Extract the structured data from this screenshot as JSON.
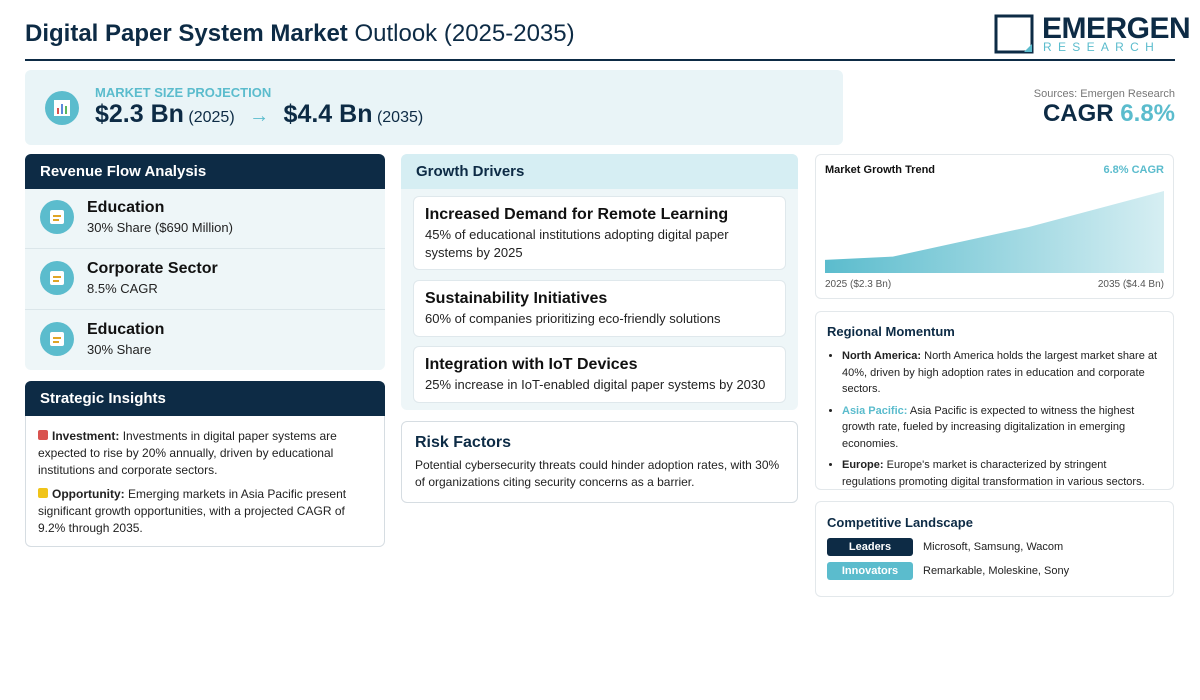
{
  "header": {
    "title_bold": "Digital Paper System Market",
    "title_rest": "Outlook (2025-2035)",
    "logo_main": "EMERGEN",
    "logo_sub": "RESEARCH"
  },
  "projection": {
    "label": "MARKET SIZE PROJECTION",
    "start_value": "$2.3 Bn",
    "start_year": "(2025)",
    "arrow": "→",
    "end_value": "$4.4 Bn",
    "end_year": "(2035)"
  },
  "sources": "Sources: Emergen Research",
  "cagr": {
    "label": "CAGR",
    "value": "6.8%"
  },
  "revenue_flow": {
    "title": "Revenue Flow Analysis",
    "items": [
      {
        "name": "Education",
        "detail": "30% Share ($690 Million)"
      },
      {
        "name": "Corporate Sector",
        "detail": "8.5% CAGR"
      },
      {
        "name": "Education",
        "detail": "30% Share"
      }
    ]
  },
  "strategic_insights": {
    "title": "Strategic Insights",
    "items": [
      {
        "label": "Investment:",
        "text": "Investments in digital paper systems are expected to rise by 20% annually, driven by educational institutions and corporate sectors."
      },
      {
        "label": "Opportunity:",
        "text": "Emerging markets in Asia Pacific present significant growth opportunities, with a projected CAGR of 9.2% through 2035."
      }
    ]
  },
  "growth_drivers": {
    "title": "Growth Drivers",
    "items": [
      {
        "title": "Increased Demand for Remote Learning",
        "text": "45% of educational institutions adopting digital paper systems by 2025"
      },
      {
        "title": "Sustainability Initiatives",
        "text": "60% of companies prioritizing eco-friendly solutions"
      },
      {
        "title": "Integration with IoT Devices",
        "text": "25% increase in IoT-enabled digital paper systems by 2030"
      }
    ]
  },
  "risk_factors": {
    "title": "Risk Factors",
    "text": "Potential cybersecurity threats could hinder adoption rates, with 30% of organizations citing security concerns as a barrier."
  },
  "trend_chart": {
    "type": "area",
    "title": "Market Growth Trend",
    "badge": "6.8% CAGR",
    "x": [
      2025,
      2027,
      2031,
      2035
    ],
    "values": [
      2.3,
      2.4,
      3.3,
      4.4
    ],
    "xlim": [
      2025,
      2035
    ],
    "ylim": [
      1.9,
      4.4
    ],
    "x_labels": [
      "2025 ($2.3 Bn)",
      "2035 ($4.4 Bn)"
    ],
    "color": "#5bbccd"
  },
  "regional_momentum": {
    "title": "Regional Momentum",
    "items": [
      {
        "region": "North America:",
        "text": "North America holds the largest market share at 40%, driven by high adoption rates in education and corporate sectors."
      },
      {
        "region": "Asia Pacific:",
        "text": "Asia Pacific is expected to witness the highest growth rate, fueled by increasing digitalization in emerging economies."
      },
      {
        "region": "Europe:",
        "text": "Europe's market is characterized by stringent regulations promoting digital transformation in various sectors."
      }
    ]
  },
  "competitive_landscape": {
    "title": "Competitive Landscape",
    "rows": [
      {
        "tag": "Leaders",
        "companies": "Microsoft, Samsung, Wacom"
      },
      {
        "tag": "Innovators",
        "companies": "Remarkable, Moleskine, Sony"
      }
    ]
  }
}
